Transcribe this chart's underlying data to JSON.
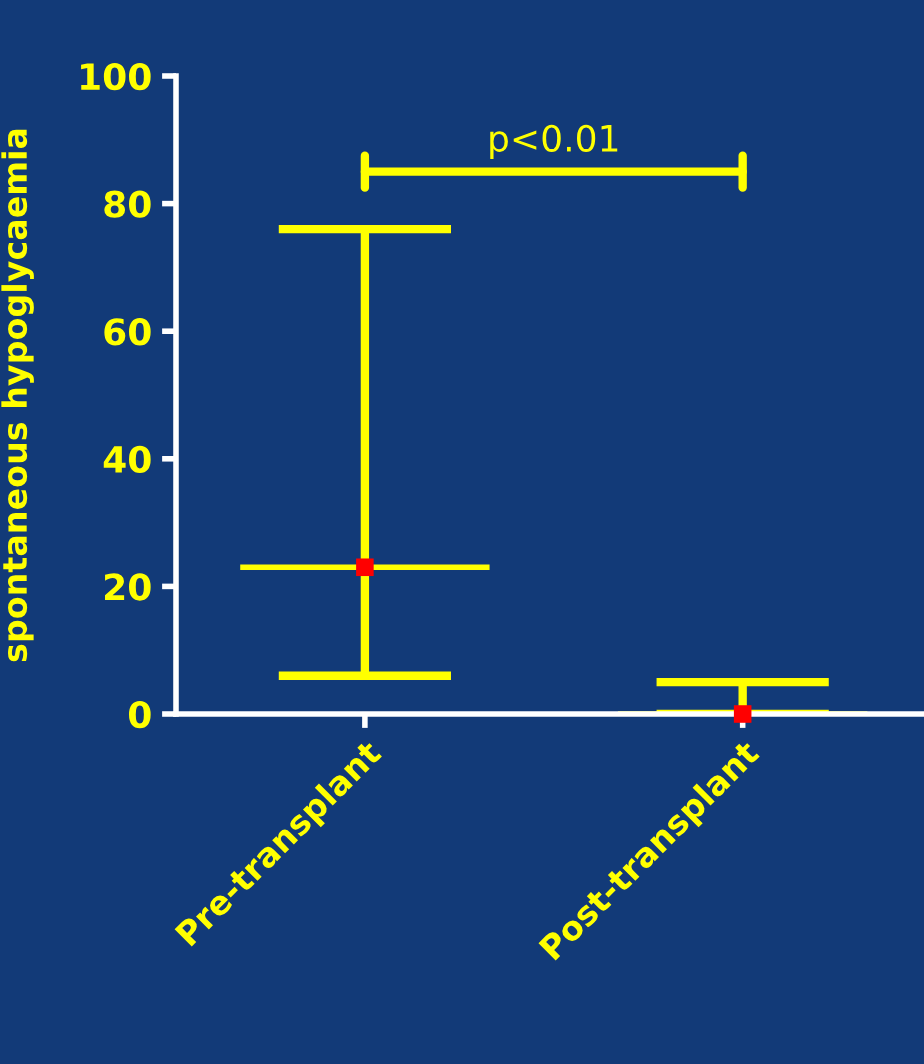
{
  "chart_data": {
    "type": "box",
    "ylabel": "spontaneous hypoglycaemia",
    "categories": [
      "Pre-transplant",
      "Post-transplant"
    ],
    "series": [
      {
        "color": "#ffff00",
        "boxes": [
          {
            "low": 6,
            "q1": 23,
            "median": 23,
            "q3": 23,
            "high": 76
          },
          {
            "low": 0,
            "q1": 0,
            "median": 0,
            "q3": 0,
            "high": 5
          }
        ]
      },
      {
        "type": "scatter",
        "color": "#ff0000",
        "marker": "square",
        "x": [
          "Pre-transplant",
          "Post-transplant"
        ],
        "values": [
          23,
          0
        ]
      }
    ],
    "ylim": [
      0,
      100
    ],
    "yticks": [
      0,
      20,
      40,
      60,
      80,
      100
    ],
    "annotations": [
      "p<0.01"
    ],
    "legend": false
  }
}
